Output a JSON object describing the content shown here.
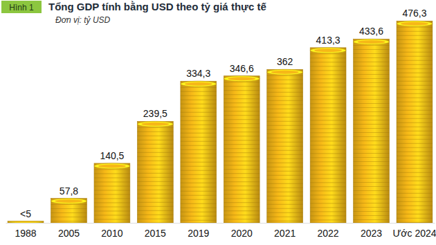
{
  "chart_data": {
    "type": "bar",
    "title": "Tổng GDP tính bằng USD theo tỷ giá thực tế",
    "subtitle": "Đơn vị: tỷ USD",
    "annotations": [
      "Hình 1"
    ],
    "categories": [
      "1988",
      "2005",
      "2010",
      "2015",
      "2019",
      "2020",
      "2021",
      "2022",
      "2023",
      "Ước 2024"
    ],
    "values": [
      4,
      57.8,
      140.5,
      239.5,
      334.3,
      346.6,
      362,
      413.3,
      433.6,
      476.3
    ],
    "value_labels": [
      "<5",
      "57,8",
      "140,5",
      "239,5",
      "334,3",
      "346,6",
      "362",
      "413,3",
      "433,6",
      "476,3"
    ],
    "color": "#f6b817",
    "ylim": [
      0,
      480
    ],
    "data_labels": true,
    "tick_labels": "x",
    "grid": false
  }
}
